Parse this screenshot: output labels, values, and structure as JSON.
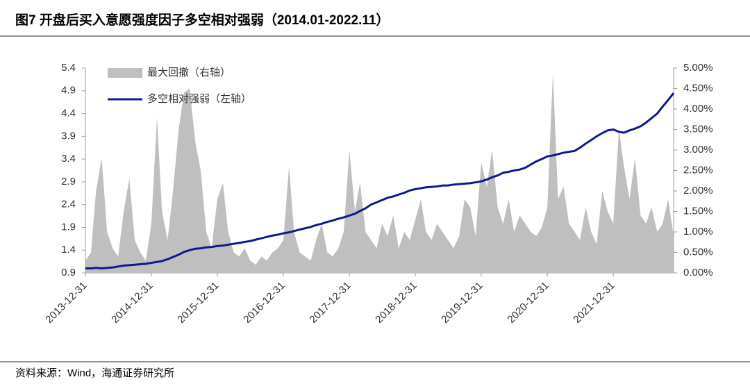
{
  "chart_data": {
    "type": "dual-axis-area-line",
    "title": "图7  开盘后买入意愿强度因子多空相对强弱（2014.01-2022.11）",
    "source": "资料来源：Wind，海通证券研究所",
    "x": [
      "2013-12-31",
      "2014-01-31",
      "2014-02-28",
      "2014-03-31",
      "2014-04-30",
      "2014-05-31",
      "2014-06-30",
      "2014-07-31",
      "2014-08-31",
      "2014-09-30",
      "2014-10-31",
      "2014-11-30",
      "2014-12-31",
      "2015-01-31",
      "2015-02-28",
      "2015-03-31",
      "2015-04-30",
      "2015-05-31",
      "2015-06-30",
      "2015-07-31",
      "2015-08-31",
      "2015-09-30",
      "2015-10-31",
      "2015-11-30",
      "2015-12-31",
      "2016-01-31",
      "2016-02-29",
      "2016-03-31",
      "2016-04-30",
      "2016-05-31",
      "2016-06-30",
      "2016-07-31",
      "2016-08-31",
      "2016-09-30",
      "2016-10-31",
      "2016-11-30",
      "2016-12-31",
      "2017-01-31",
      "2017-02-28",
      "2017-03-31",
      "2017-04-30",
      "2017-05-31",
      "2017-06-30",
      "2017-07-31",
      "2017-08-31",
      "2017-09-30",
      "2017-10-31",
      "2017-11-30",
      "2017-12-31",
      "2018-01-31",
      "2018-02-28",
      "2018-03-31",
      "2018-04-30",
      "2018-05-31",
      "2018-06-30",
      "2018-07-31",
      "2018-08-31",
      "2018-09-30",
      "2018-10-31",
      "2018-11-30",
      "2018-12-31",
      "2019-01-31",
      "2019-02-28",
      "2019-03-31",
      "2019-04-30",
      "2019-05-31",
      "2019-06-30",
      "2019-07-31",
      "2019-08-31",
      "2019-09-30",
      "2019-10-31",
      "2019-11-30",
      "2019-12-31",
      "2020-01-31",
      "2020-02-29",
      "2020-03-31",
      "2020-04-30",
      "2020-05-31",
      "2020-06-30",
      "2020-07-31",
      "2020-08-31",
      "2020-09-30",
      "2020-10-31",
      "2020-11-30",
      "2020-12-31",
      "2021-01-31",
      "2021-02-28",
      "2021-03-31",
      "2021-04-30",
      "2021-05-31",
      "2021-06-30",
      "2021-07-31",
      "2021-08-31",
      "2021-09-30",
      "2021-10-31",
      "2021-11-30",
      "2021-12-31",
      "2022-01-31",
      "2022-02-28",
      "2022-03-31",
      "2022-04-30",
      "2022-05-31",
      "2022-06-30",
      "2022-07-31",
      "2022-08-31",
      "2022-09-30",
      "2022-10-31",
      "2022-11-30"
    ],
    "series": [
      {
        "name": "最大回撤（右轴）",
        "type": "area",
        "axis": "y2",
        "color": "#bfbfbf",
        "values": [
          0.3,
          0.5,
          2.0,
          2.8,
          1.0,
          0.6,
          0.4,
          1.5,
          2.3,
          0.8,
          0.5,
          0.3,
          1.2,
          3.8,
          1.5,
          0.8,
          2.0,
          3.5,
          4.4,
          4.5,
          3.2,
          2.5,
          1.0,
          0.6,
          1.8,
          2.2,
          1.0,
          0.5,
          0.4,
          0.6,
          0.3,
          0.2,
          0.4,
          0.3,
          0.5,
          0.6,
          0.8,
          2.6,
          1.0,
          0.5,
          0.4,
          0.3,
          0.8,
          1.2,
          0.5,
          0.4,
          0.6,
          1.0,
          3.0,
          1.5,
          2.2,
          1.0,
          0.8,
          0.6,
          1.2,
          0.9,
          1.4,
          0.6,
          1.0,
          0.8,
          1.3,
          1.8,
          1.0,
          0.8,
          1.2,
          1.0,
          0.8,
          0.6,
          0.9,
          1.8,
          1.6,
          0.9,
          2.7,
          2.1,
          3.0,
          1.6,
          1.2,
          1.8,
          1.0,
          1.4,
          1.2,
          1.0,
          0.9,
          1.1,
          1.6,
          4.9,
          1.8,
          2.1,
          1.2,
          1.0,
          0.8,
          1.6,
          1.0,
          0.7,
          2.0,
          1.5,
          1.2,
          3.5,
          2.6,
          1.8,
          2.8,
          1.4,
          1.2,
          1.6,
          1.0,
          1.2,
          1.8,
          0.9
        ]
      },
      {
        "name": "多空相对强弱（左轴）",
        "type": "line",
        "axis": "y",
        "color": "#0c1a8c",
        "values": [
          1.0,
          1.0,
          1.01,
          1.0,
          1.01,
          1.02,
          1.04,
          1.06,
          1.07,
          1.08,
          1.09,
          1.1,
          1.12,
          1.14,
          1.16,
          1.2,
          1.25,
          1.3,
          1.36,
          1.4,
          1.43,
          1.44,
          1.46,
          1.47,
          1.49,
          1.5,
          1.52,
          1.54,
          1.56,
          1.58,
          1.6,
          1.63,
          1.66,
          1.69,
          1.72,
          1.74,
          1.77,
          1.79,
          1.82,
          1.85,
          1.88,
          1.91,
          1.95,
          1.98,
          2.02,
          2.05,
          2.09,
          2.12,
          2.16,
          2.2,
          2.26,
          2.32,
          2.4,
          2.45,
          2.5,
          2.55,
          2.58,
          2.62,
          2.66,
          2.71,
          2.74,
          2.76,
          2.78,
          2.79,
          2.8,
          2.82,
          2.82,
          2.84,
          2.85,
          2.86,
          2.87,
          2.89,
          2.91,
          2.95,
          3.0,
          3.04,
          3.1,
          3.12,
          3.15,
          3.17,
          3.21,
          3.28,
          3.35,
          3.4,
          3.46,
          3.48,
          3.51,
          3.54,
          3.56,
          3.58,
          3.65,
          3.74,
          3.82,
          3.9,
          3.97,
          4.03,
          4.05,
          4.0,
          3.98,
          4.03,
          4.07,
          4.12,
          4.2,
          4.3,
          4.4,
          4.55,
          4.7,
          4.85
        ]
      }
    ],
    "xlim": [
      "2013-12-31",
      "2022-11-30"
    ],
    "xticks": [
      "2013-12-31",
      "2014-12-31",
      "2015-12-31",
      "2016-12-31",
      "2017-12-31",
      "2018-12-31",
      "2019-12-31",
      "2020-12-31",
      "2021-12-31"
    ],
    "ylim": [
      0.9,
      5.4
    ],
    "yticks": [
      0.9,
      1.4,
      1.9,
      2.4,
      2.9,
      3.4,
      3.9,
      4.4,
      4.9,
      5.4
    ],
    "y2lim": [
      0,
      5
    ],
    "y2ticks": [
      {
        "value": 0,
        "label": "0.00%"
      },
      {
        "value": 0.5,
        "label": "0.50%"
      },
      {
        "value": 1,
        "label": "1.00%"
      },
      {
        "value": 1.5,
        "label": "1.50%"
      },
      {
        "value": 2,
        "label": "2.00%"
      },
      {
        "value": 2.5,
        "label": "2.50%"
      },
      {
        "value": 3,
        "label": "3.00%"
      },
      {
        "value": 3.5,
        "label": "3.50%"
      },
      {
        "value": 4,
        "label": "4.00%"
      },
      {
        "value": 4.5,
        "label": "4.50%"
      },
      {
        "value": 5,
        "label": "5.00%"
      }
    ],
    "legend": "upper-left"
  }
}
